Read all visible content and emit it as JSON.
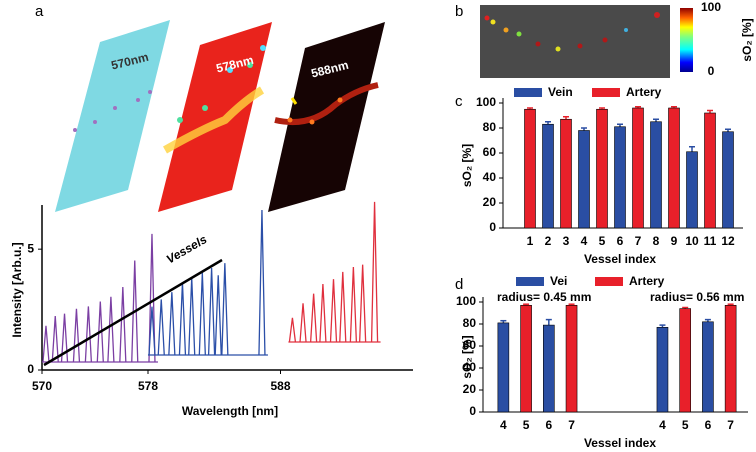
{
  "panel_labels": [
    "a",
    "b",
    "c",
    "d"
  ],
  "images": [
    {
      "label": "570nm"
    },
    {
      "label": "578nm"
    },
    {
      "label": "588nm"
    }
  ],
  "chart_data": [
    {
      "type": "waterfall",
      "xlabel": "Wavelength [nm]",
      "ylabel": "Intensity [Arb.u.]",
      "annotation": "Vessels",
      "xlim": [
        570,
        598
      ],
      "xticks": [
        570,
        578,
        588
      ],
      "ylim": [
        0,
        6
      ],
      "yticks": [
        0,
        5
      ],
      "series": [
        {
          "color": "#7b3fa3",
          "x": [
            570.3,
            571.0,
            571.7,
            572.6,
            573.5,
            574.4,
            575.2,
            576.1,
            577.0,
            578.3
          ],
          "values": [
            1.5,
            1.9,
            2.0,
            2.2,
            2.3,
            2.5,
            2.7,
            3.1,
            4.2,
            5.3
          ]
        },
        {
          "color": "#2b4fa8",
          "x": [
            578.3,
            579.0,
            579.8,
            580.6,
            581.3,
            582.1,
            582.8,
            583.3,
            583.8,
            586.6
          ],
          "values": [
            2.0,
            2.3,
            2.6,
            3.0,
            3.2,
            3.4,
            3.6,
            3.3,
            3.8,
            6.0
          ]
        },
        {
          "color": "#e0303e",
          "x": [
            588.9,
            589.7,
            590.5,
            591.2,
            592.0,
            592.7,
            593.5,
            594.2,
            595.1
          ],
          "values": [
            1.0,
            1.6,
            2.0,
            2.4,
            2.6,
            2.9,
            3.1,
            3.2,
            5.8
          ]
        }
      ]
    },
    {
      "type": "colorbar",
      "label": "sO₂ [%]",
      "lim": [
        0,
        100
      ],
      "ticks": [
        0,
        100
      ]
    },
    {
      "type": "bar",
      "xlabel": "Vessel index",
      "ylabel": "sO₂ [%]",
      "legend": "top",
      "categories": [
        "1",
        "2",
        "3",
        "4",
        "5",
        "6",
        "7",
        "8",
        "9",
        "10",
        "11",
        "12"
      ],
      "ylim": [
        0,
        100
      ],
      "yticks": [
        0,
        20,
        40,
        60,
        80,
        100
      ],
      "series": [
        {
          "name": "Vein",
          "color": "#2a4ea3",
          "values": [
            null,
            83,
            null,
            78,
            null,
            81,
            null,
            85,
            null,
            61,
            null,
            77
          ],
          "errors": [
            null,
            2,
            null,
            2,
            null,
            2,
            null,
            2,
            null,
            4,
            null,
            2
          ]
        },
        {
          "name": "Artery",
          "color": "#e8202a",
          "values": [
            95,
            null,
            87,
            null,
            95,
            null,
            96,
            null,
            96,
            null,
            92,
            null
          ],
          "errors": [
            1,
            null,
            2,
            null,
            1,
            null,
            1,
            null,
            1,
            null,
            2,
            null
          ]
        }
      ]
    },
    {
      "type": "bar",
      "xlabel": "Vessel index",
      "ylabel": "sO₂ [%]",
      "legend": "top",
      "annotations": [
        "radius= 0.45 mm",
        "radius= 0.56 mm"
      ],
      "categories": [
        "4",
        "5",
        "6",
        "7",
        null,
        null,
        null,
        "4",
        "5",
        "6",
        "7"
      ],
      "ylim": [
        0,
        100
      ],
      "yticks": [
        0,
        20,
        40,
        60,
        80,
        100
      ],
      "series": [
        {
          "name": "Vei",
          "color": "#2a4ea3",
          "values": [
            81,
            null,
            79,
            null,
            null,
            null,
            null,
            77,
            null,
            82,
            null
          ],
          "errors": [
            2,
            null,
            5,
            null,
            null,
            null,
            null,
            2,
            null,
            2,
            null
          ]
        },
        {
          "name": "Artery",
          "color": "#e8202a",
          "values": [
            null,
            97,
            null,
            97,
            null,
            null,
            null,
            null,
            94,
            null,
            97
          ],
          "errors": [
            null,
            1,
            null,
            1,
            null,
            null,
            null,
            null,
            1,
            null,
            1
          ]
        }
      ]
    }
  ]
}
